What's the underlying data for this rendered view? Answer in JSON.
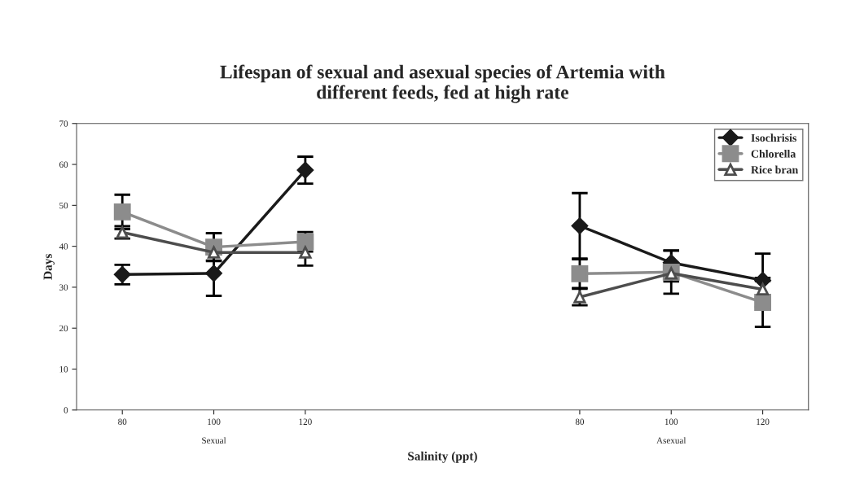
{
  "chart_data": {
    "type": "line",
    "title": "Lifespan of sexual and asexual species of Artemia with\ndifferent feeds, fed at high rate",
    "xlabel": "Salinity (ppt)",
    "ylabel": "Days",
    "categories": [
      "80",
      "100",
      "120",
      null,
      null,
      "80",
      "100",
      "120"
    ],
    "annotations": [
      "Sexual",
      "Asexual"
    ],
    "ylim": [
      0,
      70
    ],
    "yticks": [
      0,
      10,
      20,
      30,
      40,
      50,
      60,
      70
    ],
    "grid": false,
    "legend": "top right",
    "series": [
      {
        "name": "Isochrisis",
        "color": "#1a1a1a",
        "marker": "diamond",
        "values": [
          33.1,
          33.4,
          58.6,
          null,
          null,
          45.0,
          36.0,
          31.7
        ],
        "errors": [
          2.4,
          [
            27.9,
            43.2
          ],
          3.3,
          null,
          null,
          8,
          2.9,
          6.5
        ]
      },
      {
        "name": "Chlorella",
        "color": "#8c8c8c",
        "marker": "square",
        "values": [
          48.4,
          39.8,
          41.1,
          null,
          null,
          33.3,
          33.7,
          26.3
        ],
        "errors": [
          4.2,
          3.4,
          2.4,
          null,
          null,
          3.5,
          5.3,
          6
        ]
      },
      {
        "name": "Rice bran",
        "color": "#4d4d4d",
        "marker": "triangle",
        "values": [
          43.4,
          38.5,
          38.5,
          null,
          null,
          27.6,
          33.4,
          29.5
        ],
        "errors": [
          1.5,
          2,
          3.2,
          null,
          null,
          2,
          2,
          2
        ]
      }
    ]
  }
}
